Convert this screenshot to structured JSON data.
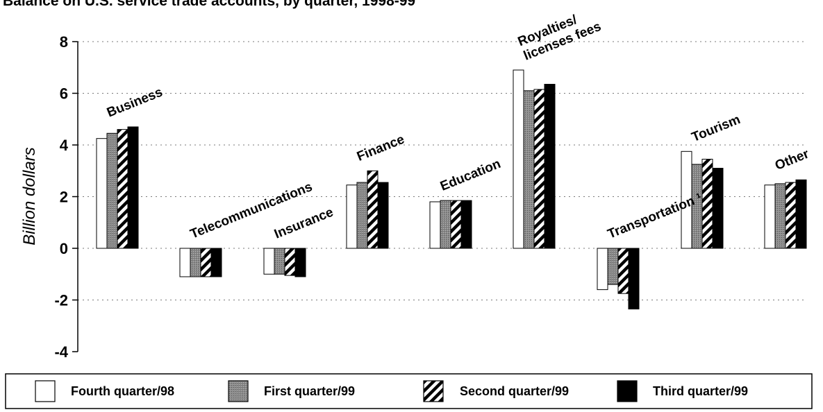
{
  "chart_data": {
    "type": "bar",
    "title": "Balance on U.S. service trade accounts, by quarter, 1998-99",
    "ylabel": "Billion dollars",
    "xlabel": "",
    "ylim": [
      -4,
      8
    ],
    "yticks": [
      8,
      6,
      4,
      2,
      0,
      -2,
      -4
    ],
    "grid": "horizontal dotted",
    "legend_placement": "bottom",
    "categories": [
      [
        "Business"
      ],
      [
        "Telecommunications"
      ],
      [
        "Insurance"
      ],
      [
        "Finance"
      ],
      [
        "Education"
      ],
      [
        "Royalties/",
        "licenses fees"
      ],
      [
        "Transportation ¹"
      ],
      [
        "Tourism"
      ],
      [
        "Other"
      ]
    ],
    "series": [
      {
        "name": "Fourth quarter/98",
        "pattern": "white",
        "values": [
          4.25,
          -1.1,
          -1.0,
          2.45,
          1.8,
          6.9,
          -1.6,
          3.75,
          2.45
        ]
      },
      {
        "name": "First quarter/99",
        "pattern": "gray-dotted",
        "values": [
          4.45,
          -1.1,
          -1.0,
          2.55,
          1.85,
          6.1,
          -1.4,
          3.25,
          2.5
        ]
      },
      {
        "name": "Second quarter/99",
        "pattern": "diagonal-hatch",
        "values": [
          4.6,
          -1.1,
          -1.05,
          3.0,
          1.85,
          6.15,
          -1.75,
          3.45,
          2.55
        ]
      },
      {
        "name": "Third quarter/99",
        "pattern": "black",
        "values": [
          4.7,
          -1.1,
          -1.1,
          2.55,
          1.85,
          6.35,
          -2.35,
          3.1,
          2.65
        ]
      }
    ]
  }
}
